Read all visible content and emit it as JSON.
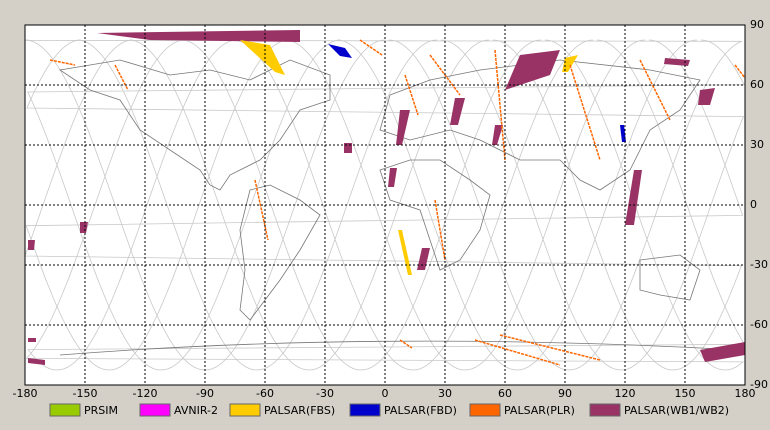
{
  "map": {
    "xaxis": {
      "ticks": [
        -180,
        -150,
        -120,
        -90,
        -60,
        -30,
        0,
        30,
        60,
        90,
        120,
        150,
        180
      ]
    },
    "yaxis": {
      "ticks": [
        90,
        60,
        30,
        0,
        -30,
        -60,
        -90
      ]
    },
    "legend": [
      {
        "label": "PRSIM",
        "color": "#99cc00"
      },
      {
        "label": "AVNIR-2",
        "color": "#ff00ff"
      },
      {
        "label": "PALSAR(FBS)",
        "color": "#ffcc00"
      },
      {
        "label": "PALSAR(FBD)",
        "color": "#0000cc"
      },
      {
        "label": "PALSAR(PLR)",
        "color": "#ff6600"
      },
      {
        "label": "PALSAR(WB1/WB2)",
        "color": "#993366"
      }
    ]
  }
}
